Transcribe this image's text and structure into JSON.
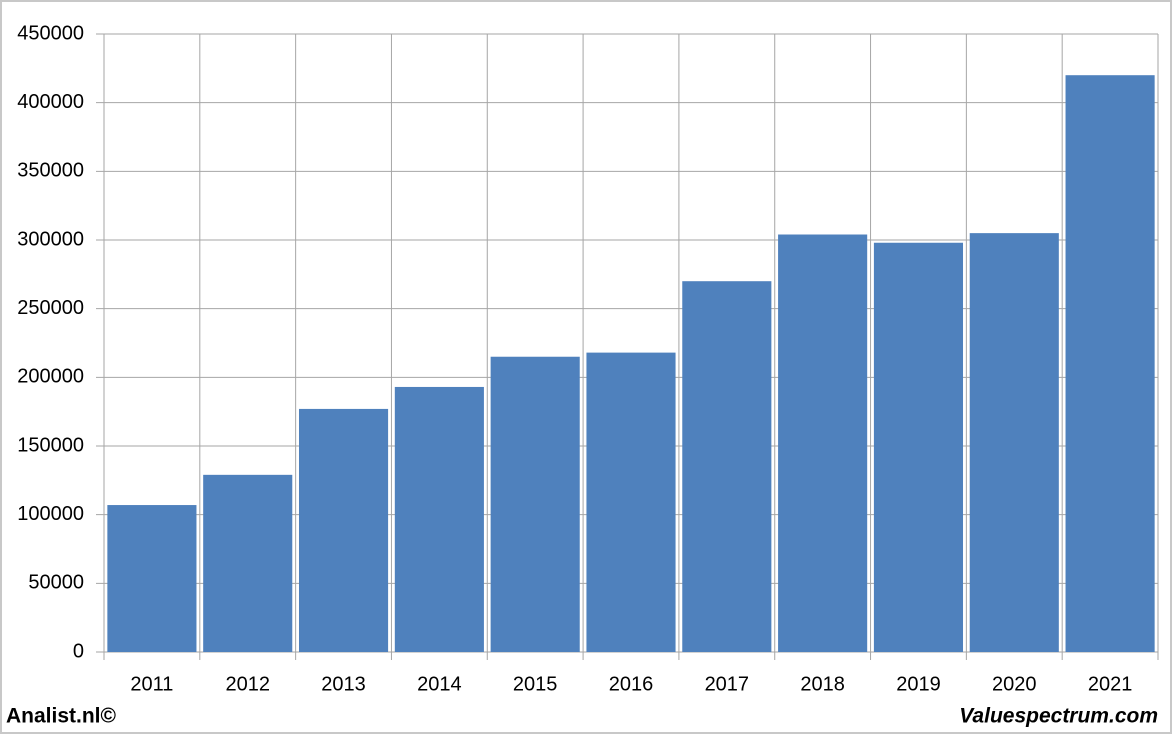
{
  "chart_data": {
    "type": "bar",
    "categories": [
      "2011",
      "2012",
      "2013",
      "2014",
      "2015",
      "2016",
      "2017",
      "2018",
      "2019",
      "2020",
      "2021"
    ],
    "values": [
      107000,
      129000,
      177000,
      193000,
      215000,
      218000,
      270000,
      304000,
      298000,
      305000,
      420000
    ],
    "color": "#4f81bd",
    "ylim": [
      0,
      450000
    ],
    "yticks": [
      0,
      50000,
      100000,
      150000,
      200000,
      250000,
      300000,
      350000,
      400000,
      450000
    ],
    "grid": true,
    "footer_left": "Analist.nl©",
    "footer_right": "Valuespectrum.com"
  }
}
